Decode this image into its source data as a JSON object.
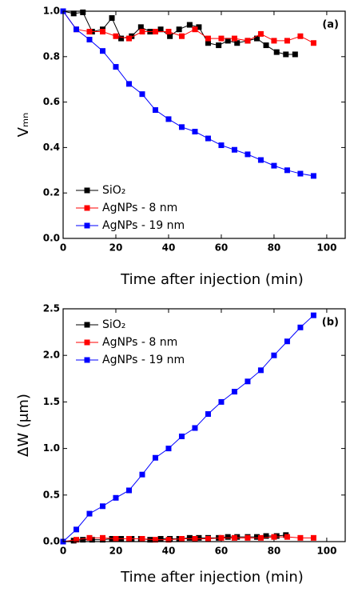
{
  "chart_data": [
    {
      "type": "line",
      "panel_label": "(a)",
      "xlabel": "Time after injection (min)",
      "ylabel": "Vₘₙ",
      "xlim": [
        0,
        107
      ],
      "ylim": [
        0,
        1
      ],
      "xticks": [
        0,
        20,
        40,
        60,
        80,
        100
      ],
      "yticks": [
        {
          "value": 0,
          "label": "0.0"
        },
        0.2,
        0.4,
        0.6,
        0.8,
        {
          "value": 1,
          "label": "1.0"
        }
      ],
      "grid": false,
      "legend": "lower left",
      "series": [
        {
          "name": "SiO₂",
          "color": "#000000",
          "x": [
            0,
            4,
            7.5,
            11,
            15,
            18.5,
            22,
            26,
            29.5,
            33,
            37,
            40.5,
            44,
            48,
            51.5,
            55,
            59,
            62.5,
            66,
            70,
            73.5,
            77,
            81,
            84.5,
            88
          ],
          "values": [
            1.0,
            0.99,
            0.995,
            0.91,
            0.92,
            0.97,
            0.88,
            0.89,
            0.93,
            0.91,
            0.92,
            0.89,
            0.92,
            0.94,
            0.93,
            0.86,
            0.85,
            0.87,
            0.86,
            0.87,
            0.88,
            0.85,
            0.82,
            0.81,
            0.81
          ]
        },
        {
          "name": "AgNPs - 8 nm",
          "color": "#ff0000",
          "x": [
            0,
            5,
            10,
            15,
            20,
            25,
            30,
            35,
            40,
            45,
            50,
            55,
            60,
            65,
            70,
            75,
            80,
            85,
            90,
            95
          ],
          "values": [
            1.0,
            0.92,
            0.91,
            0.91,
            0.89,
            0.88,
            0.91,
            0.91,
            0.91,
            0.89,
            0.92,
            0.88,
            0.88,
            0.88,
            0.87,
            0.9,
            0.87,
            0.87,
            0.89,
            0.86
          ]
        },
        {
          "name": "AgNPs - 19 nm",
          "color": "#0000ff",
          "x": [
            0,
            5,
            10,
            15,
            20,
            25,
            30,
            35,
            40,
            45,
            50,
            55,
            60,
            65,
            70,
            75,
            80,
            85,
            90,
            95
          ],
          "values": [
            1.0,
            0.92,
            0.875,
            0.825,
            0.755,
            0.68,
            0.635,
            0.565,
            0.525,
            0.49,
            0.47,
            0.44,
            0.41,
            0.39,
            0.37,
            0.345,
            0.32,
            0.3,
            0.285,
            0.275
          ]
        }
      ]
    },
    {
      "type": "line",
      "panel_label": "(b)",
      "xlabel": "Time after injection (min)",
      "ylabel": "ΔW (μm)",
      "xlim": [
        0,
        107
      ],
      "ylim": [
        0,
        2.5
      ],
      "xticks": [
        0,
        20,
        40,
        60,
        80,
        100
      ],
      "yticks": [
        {
          "value": 0,
          "label": "0.0"
        },
        0.5,
        {
          "value": 1,
          "label": "1.0"
        },
        1.5,
        {
          "value": 2,
          "label": "2.0"
        },
        2.5
      ],
      "grid": false,
      "legend": "upper left",
      "series": [
        {
          "name": "SiO₂",
          "color": "#000000",
          "x": [
            0,
            4,
            7.5,
            11,
            15,
            18.5,
            22,
            26,
            29.5,
            33,
            37,
            40.5,
            44,
            48,
            51.5,
            55,
            59,
            62.5,
            66,
            70,
            73.5,
            77,
            81,
            84.5
          ],
          "values": [
            0,
            0.01,
            0.02,
            0.02,
            0.02,
            0.03,
            0.03,
            0.03,
            0.03,
            0.02,
            0.03,
            0.03,
            0.03,
            0.04,
            0.04,
            0.04,
            0.04,
            0.05,
            0.05,
            0.05,
            0.05,
            0.06,
            0.06,
            0.07
          ]
        },
        {
          "name": "AgNPs - 8 nm",
          "color": "#ff0000",
          "x": [
            0,
            5,
            10,
            15,
            20,
            25,
            30,
            35,
            40,
            45,
            50,
            55,
            60,
            65,
            70,
            75,
            80,
            85,
            90,
            95
          ],
          "values": [
            0,
            0.02,
            0.04,
            0.04,
            0.03,
            0.03,
            0.03,
            0.02,
            0.02,
            0.03,
            0.03,
            0.03,
            0.04,
            0.04,
            0.04,
            0.04,
            0.05,
            0.05,
            0.04,
            0.04
          ]
        },
        {
          "name": "AgNPs - 19 nm",
          "color": "#0000ff",
          "x": [
            0,
            5,
            10,
            15,
            20,
            25,
            30,
            35,
            40,
            45,
            50,
            55,
            60,
            65,
            70,
            75,
            80,
            85,
            90,
            95
          ],
          "values": [
            0,
            0.13,
            0.3,
            0.38,
            0.47,
            0.55,
            0.72,
            0.9,
            1.0,
            1.13,
            1.22,
            1.37,
            1.5,
            1.61,
            1.72,
            1.84,
            2.0,
            2.15,
            2.3,
            2.43
          ]
        }
      ]
    }
  ]
}
